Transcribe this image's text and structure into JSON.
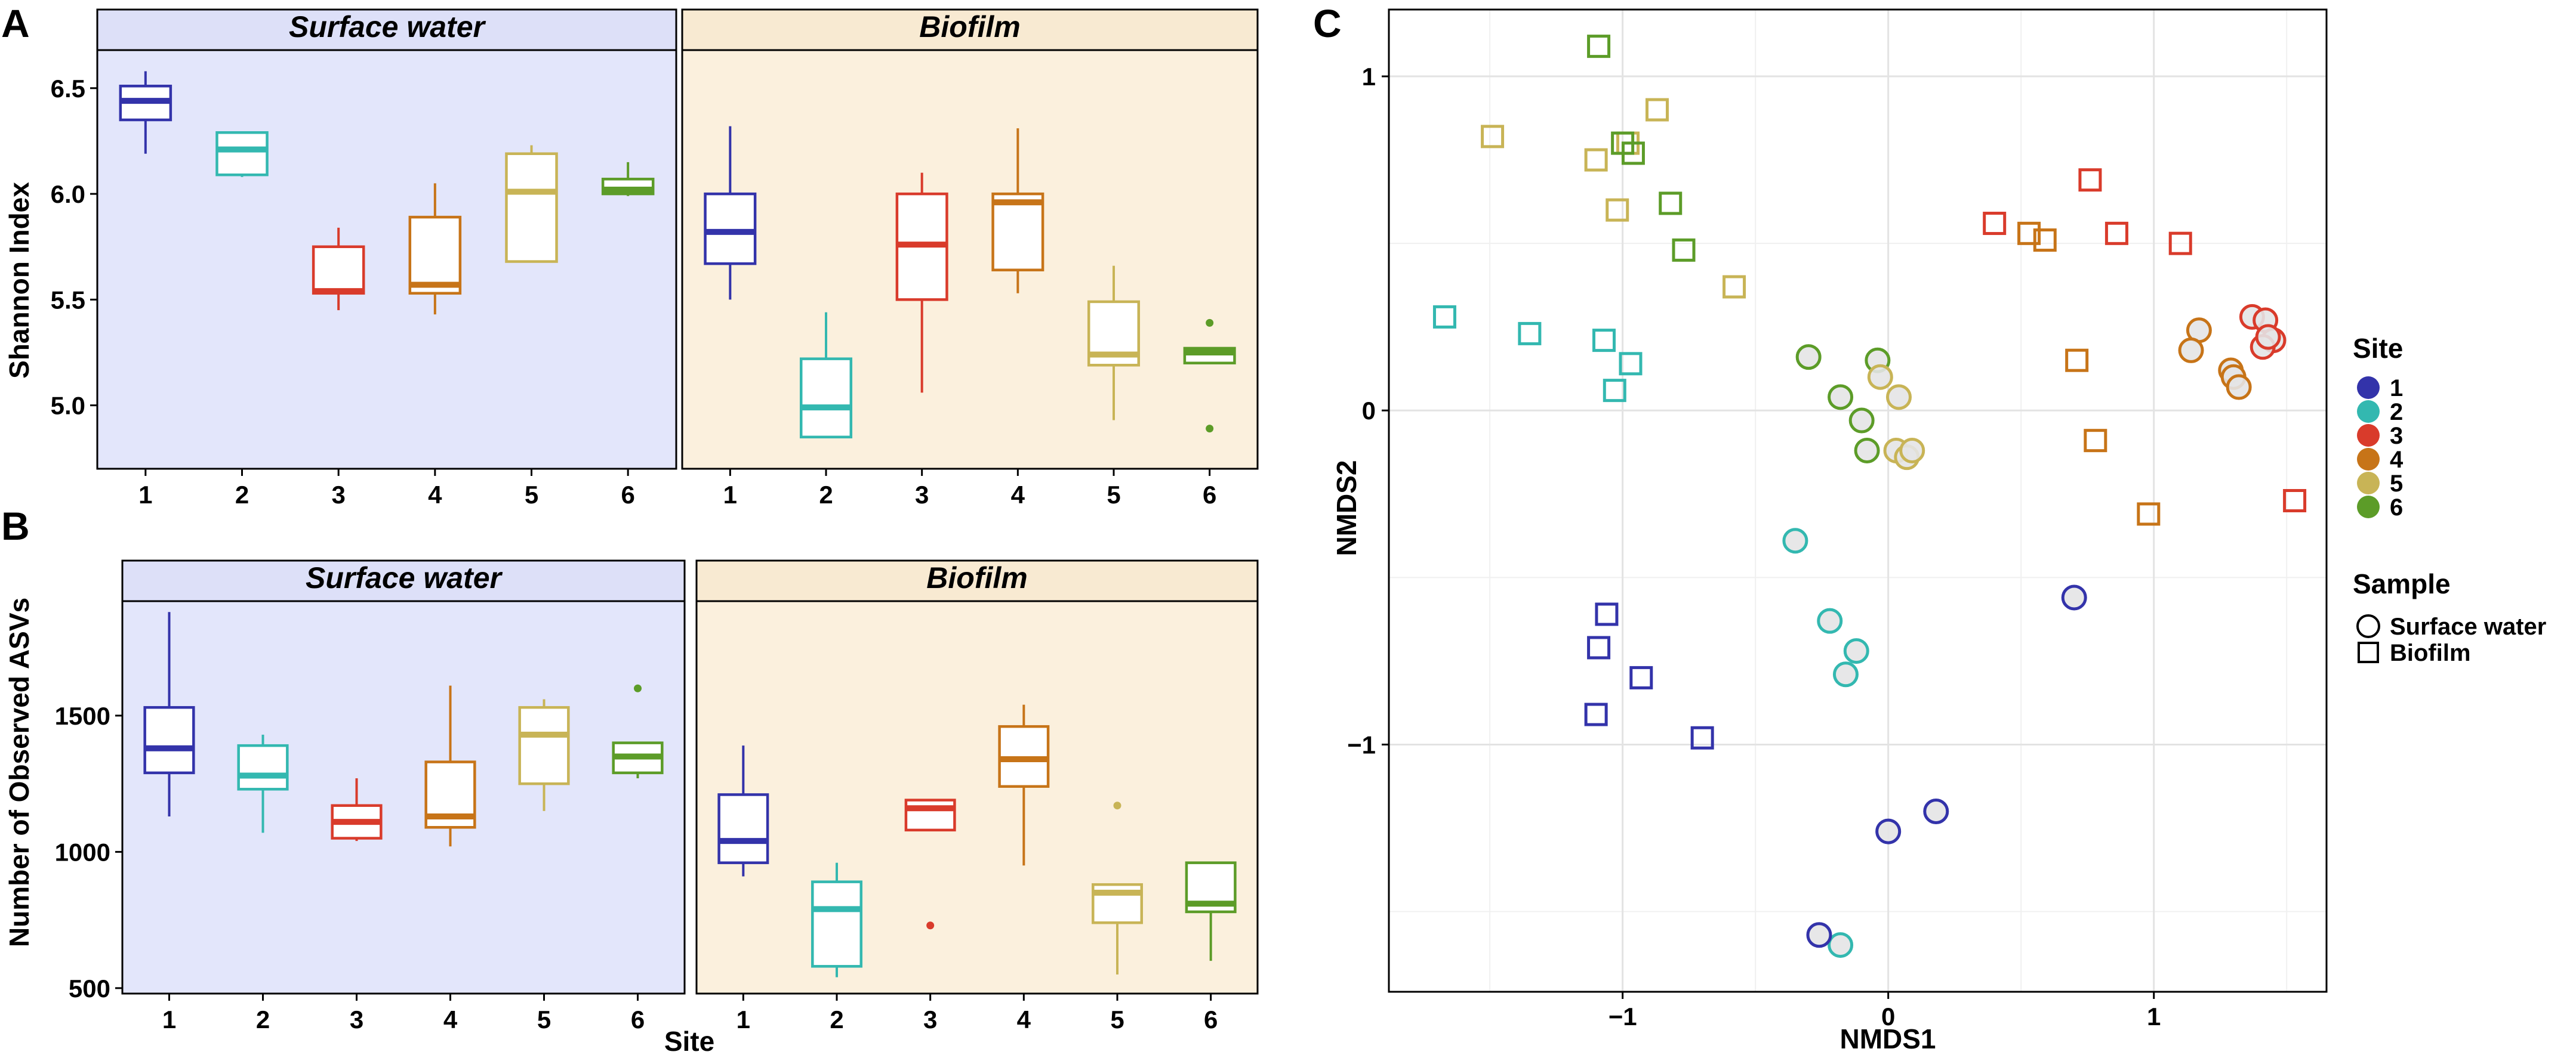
{
  "panels": {
    "a": "A",
    "b": "B",
    "c": "C"
  },
  "colors": {
    "1": "#3333aa",
    "2": "#33b8b0",
    "3": "#d93b2b",
    "4": "#c77418",
    "5": "#c8b456",
    "6": "#5c9c28",
    "surface_bg": "#e3e6fb",
    "biofilm_bg": "#fbf0dd",
    "strip_bg_surface": "#dde0f8",
    "strip_bg_biofilm": "#f8ead2"
  },
  "legend": {
    "site_title": "Site",
    "sites": [
      "1",
      "2",
      "3",
      "4",
      "5",
      "6"
    ],
    "sample_title": "Sample",
    "samples": [
      {
        "label": "Surface water",
        "shape": "circle"
      },
      {
        "label": "Biofilm",
        "shape": "square"
      }
    ]
  },
  "chart_data": [
    {
      "id": "A",
      "type": "boxplot",
      "ylabel": "Shannon Index",
      "xlabel": "",
      "ylim": [
        4.7,
        6.68
      ],
      "yticks": [
        "5.0",
        "5.5",
        "6.0",
        "6.5"
      ],
      "ytick_values": [
        5.0,
        5.5,
        6.0,
        6.5
      ],
      "facets": [
        {
          "name": "Surface water",
          "categories": [
            "1",
            "2",
            "3",
            "4",
            "5",
            "6"
          ],
          "boxes": [
            {
              "site": "1",
              "min": 6.19,
              "q1": 6.35,
              "median": 6.44,
              "q3": 6.51,
              "max": 6.58,
              "outliers": []
            },
            {
              "site": "2",
              "min": 6.08,
              "q1": 6.09,
              "median": 6.21,
              "q3": 6.29,
              "max": 6.29,
              "outliers": []
            },
            {
              "site": "3",
              "min": 5.45,
              "q1": 5.53,
              "median": 5.54,
              "q3": 5.75,
              "max": 5.84,
              "outliers": []
            },
            {
              "site": "4",
              "min": 5.43,
              "q1": 5.53,
              "median": 5.57,
              "q3": 5.89,
              "max": 6.05,
              "outliers": []
            },
            {
              "site": "5",
              "min": 5.68,
              "q1": 5.68,
              "median": 6.01,
              "q3": 6.19,
              "max": 6.23,
              "outliers": []
            },
            {
              "site": "6",
              "min": 5.99,
              "q1": 6.0,
              "median": 6.02,
              "q3": 6.07,
              "max": 6.15,
              "outliers": []
            }
          ]
        },
        {
          "name": "Biofilm",
          "categories": [
            "1",
            "2",
            "3",
            "4",
            "5",
            "6"
          ],
          "boxes": [
            {
              "site": "1",
              "min": 5.5,
              "q1": 5.67,
              "median": 5.82,
              "q3": 6.0,
              "max": 6.32,
              "outliers": []
            },
            {
              "site": "2",
              "min": 4.85,
              "q1": 4.85,
              "median": 4.99,
              "q3": 5.22,
              "max": 5.44,
              "outliers": []
            },
            {
              "site": "3",
              "min": 5.06,
              "q1": 5.5,
              "median": 5.76,
              "q3": 6.0,
              "max": 6.1,
              "outliers": []
            },
            {
              "site": "4",
              "min": 5.53,
              "q1": 5.64,
              "median": 5.96,
              "q3": 6.0,
              "max": 6.31,
              "outliers": []
            },
            {
              "site": "5",
              "min": 4.93,
              "q1": 5.19,
              "median": 5.24,
              "q3": 5.49,
              "max": 5.66,
              "outliers": []
            },
            {
              "site": "6",
              "min": 5.2,
              "q1": 5.2,
              "median": 5.25,
              "q3": 5.27,
              "max": 5.27,
              "outliers": [
                5.39,
                4.89
              ]
            }
          ]
        }
      ]
    },
    {
      "id": "B",
      "type": "boxplot",
      "ylabel": "Number of Observed ASVs",
      "xlabel": "Site",
      "ylim": [
        480,
        1920
      ],
      "yticks": [
        "500",
        "1000",
        "1500"
      ],
      "ytick_values": [
        500,
        1000,
        1500
      ],
      "facets": [
        {
          "name": "Surface water",
          "categories": [
            "1",
            "2",
            "3",
            "4",
            "5",
            "6"
          ],
          "boxes": [
            {
              "site": "1",
              "min": 1130,
              "q1": 1290,
              "median": 1380,
              "q3": 1530,
              "max": 1880,
              "outliers": []
            },
            {
              "site": "2",
              "min": 1070,
              "q1": 1230,
              "median": 1280,
              "q3": 1390,
              "max": 1430,
              "outliers": []
            },
            {
              "site": "3",
              "min": 1040,
              "q1": 1050,
              "median": 1110,
              "q3": 1170,
              "max": 1270,
              "outliers": []
            },
            {
              "site": "4",
              "min": 1020,
              "q1": 1090,
              "median": 1130,
              "q3": 1330,
              "max": 1610,
              "outliers": []
            },
            {
              "site": "5",
              "min": 1150,
              "q1": 1250,
              "median": 1430,
              "q3": 1530,
              "max": 1560,
              "outliers": []
            },
            {
              "site": "6",
              "min": 1270,
              "q1": 1290,
              "median": 1350,
              "q3": 1400,
              "max": 1400,
              "outliers": [
                1600
              ]
            }
          ]
        },
        {
          "name": "Biofilm",
          "categories": [
            "1",
            "2",
            "3",
            "4",
            "5",
            "6"
          ],
          "boxes": [
            {
              "site": "1",
              "min": 910,
              "q1": 960,
              "median": 1040,
              "q3": 1210,
              "max": 1390,
              "outliers": []
            },
            {
              "site": "2",
              "min": 540,
              "q1": 580,
              "median": 790,
              "q3": 890,
              "max": 960,
              "outliers": []
            },
            {
              "site": "3",
              "min": 1080,
              "q1": 1080,
              "median": 1160,
              "q3": 1190,
              "max": 1190,
              "outliers": [
                730
              ]
            },
            {
              "site": "4",
              "min": 950,
              "q1": 1240,
              "median": 1340,
              "q3": 1460,
              "max": 1540,
              "outliers": []
            },
            {
              "site": "5",
              "min": 550,
              "q1": 740,
              "median": 850,
              "q3": 880,
              "max": 880,
              "outliers": [
                1170
              ]
            },
            {
              "site": "6",
              "min": 600,
              "q1": 780,
              "median": 810,
              "q3": 960,
              "max": 960,
              "outliers": []
            }
          ]
        }
      ]
    },
    {
      "id": "C",
      "type": "scatter",
      "title": "",
      "xlabel": "NMDS1",
      "ylabel": "NMDS2",
      "xlim": [
        -1.88,
        1.65
      ],
      "ylim": [
        -1.74,
        1.2
      ],
      "xticks": [
        "−1",
        "0",
        "1"
      ],
      "xtick_values": [
        -1,
        0,
        1
      ],
      "yticks": [
        "−1",
        "0",
        "1"
      ],
      "ytick_values": [
        -1,
        0,
        1
      ],
      "grid": true,
      "points": [
        {
          "x": -1.67,
          "y": 0.28,
          "site": "2",
          "sample": "Biofilm"
        },
        {
          "x": -1.35,
          "y": 0.23,
          "site": "2",
          "sample": "Biofilm"
        },
        {
          "x": -1.07,
          "y": 0.21,
          "site": "2",
          "sample": "Biofilm"
        },
        {
          "x": -0.97,
          "y": 0.14,
          "site": "2",
          "sample": "Biofilm"
        },
        {
          "x": -1.03,
          "y": 0.06,
          "site": "2",
          "sample": "Biofilm"
        },
        {
          "x": -1.49,
          "y": 0.82,
          "site": "5",
          "sample": "Biofilm"
        },
        {
          "x": -1.1,
          "y": 0.75,
          "site": "5",
          "sample": "Biofilm"
        },
        {
          "x": -0.87,
          "y": 0.9,
          "site": "5",
          "sample": "Biofilm"
        },
        {
          "x": -1.02,
          "y": 0.6,
          "site": "5",
          "sample": "Biofilm"
        },
        {
          "x": -0.58,
          "y": 0.37,
          "site": "5",
          "sample": "Biofilm"
        },
        {
          "x": -0.98,
          "y": 0.8,
          "site": "5",
          "sample": "Biofilm"
        },
        {
          "x": -1.09,
          "y": 1.09,
          "site": "6",
          "sample": "Biofilm"
        },
        {
          "x": -1.0,
          "y": 0.8,
          "site": "6",
          "sample": "Biofilm"
        },
        {
          "x": -0.96,
          "y": 0.77,
          "site": "6",
          "sample": "Biofilm"
        },
        {
          "x": -0.82,
          "y": 0.62,
          "site": "6",
          "sample": "Biofilm"
        },
        {
          "x": -0.77,
          "y": 0.48,
          "site": "6",
          "sample": "Biofilm"
        },
        {
          "x": -1.06,
          "y": -0.61,
          "site": "1",
          "sample": "Biofilm"
        },
        {
          "x": -1.09,
          "y": -0.71,
          "site": "1",
          "sample": "Biofilm"
        },
        {
          "x": -0.93,
          "y": -0.8,
          "site": "1",
          "sample": "Biofilm"
        },
        {
          "x": -1.1,
          "y": -0.91,
          "site": "1",
          "sample": "Biofilm"
        },
        {
          "x": -0.7,
          "y": -0.98,
          "site": "1",
          "sample": "Biofilm"
        },
        {
          "x": 0.4,
          "y": 0.56,
          "site": "3",
          "sample": "Biofilm"
        },
        {
          "x": 0.76,
          "y": 0.69,
          "site": "3",
          "sample": "Biofilm"
        },
        {
          "x": 0.86,
          "y": 0.53,
          "site": "3",
          "sample": "Biofilm"
        },
        {
          "x": 1.1,
          "y": 0.5,
          "site": "3",
          "sample": "Biofilm"
        },
        {
          "x": 1.53,
          "y": -0.27,
          "site": "3",
          "sample": "Biofilm"
        },
        {
          "x": 0.53,
          "y": 0.53,
          "site": "4",
          "sample": "Biofilm"
        },
        {
          "x": 0.59,
          "y": 0.51,
          "site": "4",
          "sample": "Biofilm"
        },
        {
          "x": 0.71,
          "y": 0.15,
          "site": "4",
          "sample": "Biofilm"
        },
        {
          "x": 0.78,
          "y": -0.09,
          "site": "4",
          "sample": "Biofilm"
        },
        {
          "x": 0.98,
          "y": -0.31,
          "site": "4",
          "sample": "Biofilm"
        },
        {
          "x": -0.35,
          "y": -0.39,
          "site": "2",
          "sample": "Surface water"
        },
        {
          "x": -0.22,
          "y": -0.63,
          "site": "2",
          "sample": "Surface water"
        },
        {
          "x": -0.12,
          "y": -0.72,
          "site": "2",
          "sample": "Surface water"
        },
        {
          "x": -0.16,
          "y": -0.79,
          "site": "2",
          "sample": "Surface water"
        },
        {
          "x": -0.18,
          "y": -1.6,
          "site": "2",
          "sample": "Surface water"
        },
        {
          "x": 0.0,
          "y": -1.26,
          "site": "1",
          "sample": "Surface water"
        },
        {
          "x": 0.18,
          "y": -1.2,
          "site": "1",
          "sample": "Surface water"
        },
        {
          "x": -0.26,
          "y": -1.57,
          "site": "1",
          "sample": "Surface water"
        },
        {
          "x": 0.7,
          "y": -0.56,
          "site": "1",
          "sample": "Surface water"
        },
        {
          "x": -0.3,
          "y": 0.16,
          "site": "6",
          "sample": "Surface water"
        },
        {
          "x": -0.18,
          "y": 0.04,
          "site": "6",
          "sample": "Surface water"
        },
        {
          "x": -0.1,
          "y": -0.03,
          "site": "6",
          "sample": "Surface water"
        },
        {
          "x": -0.08,
          "y": -0.12,
          "site": "6",
          "sample": "Surface water"
        },
        {
          "x": -0.04,
          "y": 0.15,
          "site": "6",
          "sample": "Surface water"
        },
        {
          "x": -0.03,
          "y": 0.1,
          "site": "5",
          "sample": "Surface water"
        },
        {
          "x": 0.04,
          "y": 0.04,
          "site": "5",
          "sample": "Surface water"
        },
        {
          "x": 0.03,
          "y": -0.12,
          "site": "5",
          "sample": "Surface water"
        },
        {
          "x": 0.07,
          "y": -0.14,
          "site": "5",
          "sample": "Surface water"
        },
        {
          "x": 0.09,
          "y": -0.12,
          "site": "5",
          "sample": "Surface water"
        },
        {
          "x": 1.17,
          "y": 0.24,
          "site": "4",
          "sample": "Surface water"
        },
        {
          "x": 1.14,
          "y": 0.18,
          "site": "4",
          "sample": "Surface water"
        },
        {
          "x": 1.29,
          "y": 0.12,
          "site": "4",
          "sample": "Surface water"
        },
        {
          "x": 1.3,
          "y": 0.1,
          "site": "4",
          "sample": "Surface water"
        },
        {
          "x": 1.32,
          "y": 0.07,
          "site": "4",
          "sample": "Surface water"
        },
        {
          "x": 1.37,
          "y": 0.28,
          "site": "3",
          "sample": "Surface water"
        },
        {
          "x": 1.42,
          "y": 0.27,
          "site": "3",
          "sample": "Surface water"
        },
        {
          "x": 1.45,
          "y": 0.21,
          "site": "3",
          "sample": "Surface water"
        },
        {
          "x": 1.41,
          "y": 0.19,
          "site": "3",
          "sample": "Surface water"
        },
        {
          "x": 1.43,
          "y": 0.22,
          "site": "3",
          "sample": "Surface water"
        }
      ]
    }
  ]
}
